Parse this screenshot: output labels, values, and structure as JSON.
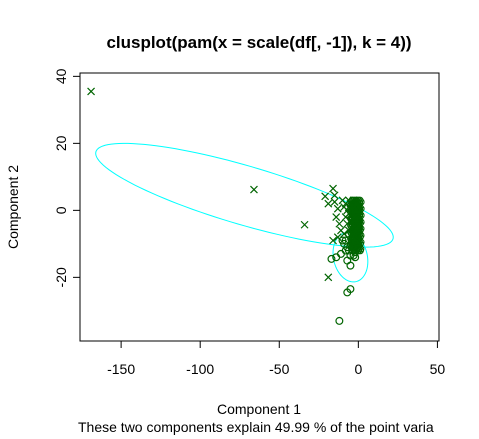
{
  "chart_data": {
    "type": "scatter",
    "title": "clusplot(pam(x = scale(df[, -1]), k = 4))",
    "xlabel": "Component 1",
    "ylabel": "Component 2",
    "subtitle": "These two components explain 49.99 % of the point varia",
    "xlim": [
      -176,
      51
    ],
    "ylim": [
      -39,
      41
    ],
    "x_ticks": [
      -150,
      -100,
      -50,
      0,
      50
    ],
    "x_tick_labels": [
      "-150",
      "-100",
      "-50",
      "0",
      "50"
    ],
    "y_ticks": [
      -20,
      0,
      20,
      40
    ],
    "y_tick_labels": [
      "-20",
      "0",
      "20",
      "40"
    ],
    "grid": false,
    "colors": {
      "points": "#006400",
      "ellipses": "#00FFFF",
      "axes": "#000000"
    },
    "ellipses": [
      {
        "center": [
          -72,
          4.5
        ],
        "semi_axes": [
          101,
          8.5
        ],
        "angle_deg": -22
      },
      {
        "center": [
          -5,
          -14
        ],
        "semi_axes": [
          21,
          3.8
        ],
        "angle_deg": -83
      }
    ],
    "series": [
      {
        "marker": "x",
        "values": [
          [
            -169,
            35.5
          ],
          [
            -66,
            6.2
          ],
          [
            -34,
            -4.3
          ],
          [
            -21,
            4.2
          ],
          [
            -19,
            2
          ],
          [
            -16,
            6.5
          ],
          [
            -15,
            4.5
          ],
          [
            -15,
            2.5
          ],
          [
            -13,
            0.5
          ],
          [
            -14,
            -2
          ],
          [
            -12,
            -4
          ],
          [
            -10,
            3
          ],
          [
            -16,
            -9
          ],
          [
            -13,
            -8
          ],
          [
            -11,
            -6
          ],
          [
            -19,
            -20
          ],
          [
            -9,
            1
          ],
          [
            -8,
            2
          ],
          [
            -8,
            -2
          ],
          [
            -7,
            0
          ],
          [
            -7,
            -4
          ],
          [
            -6,
            3
          ],
          [
            -6,
            1
          ],
          [
            -6,
            -1
          ],
          [
            -5,
            2
          ],
          [
            -5,
            -3
          ],
          [
            -4,
            1
          ],
          [
            -4,
            -1
          ],
          [
            -3,
            3
          ],
          [
            -3,
            0
          ],
          [
            -3,
            -5
          ],
          [
            -2,
            1
          ],
          [
            -2,
            -2
          ],
          [
            -1,
            2
          ],
          [
            -1,
            0
          ],
          [
            0,
            1
          ],
          [
            0,
            -1
          ],
          [
            1,
            0
          ],
          [
            -9,
            -7
          ],
          [
            -6,
            -6
          ]
        ]
      },
      {
        "marker": "circle",
        "values": [
          [
            -17,
            -14.5
          ],
          [
            -14,
            -14
          ],
          [
            -11,
            -13
          ],
          [
            -8,
            -12
          ],
          [
            -7,
            -15
          ],
          [
            -5,
            -13.5
          ],
          [
            -5,
            -16.5
          ],
          [
            -4,
            -11
          ],
          [
            -3,
            -13.5
          ],
          [
            -2,
            -10
          ],
          [
            -2,
            -14
          ],
          [
            -1,
            -8
          ],
          [
            -8,
            -9
          ],
          [
            -6,
            -7
          ],
          [
            -4,
            -6
          ],
          [
            -3,
            -8
          ],
          [
            -2,
            -5
          ],
          [
            -1,
            -4
          ],
          [
            0,
            -3
          ],
          [
            0,
            -6
          ],
          [
            -7,
            -24.5
          ],
          [
            -5,
            -23.5
          ],
          [
            -12,
            -33
          ],
          [
            -9,
            -10
          ],
          [
            -7,
            -11
          ],
          [
            -6,
            -12
          ],
          [
            -10,
            -9
          ],
          [
            -3,
            -11
          ],
          [
            -2,
            -12.5
          ],
          [
            -1,
            -9.5
          ]
        ]
      }
    ]
  }
}
